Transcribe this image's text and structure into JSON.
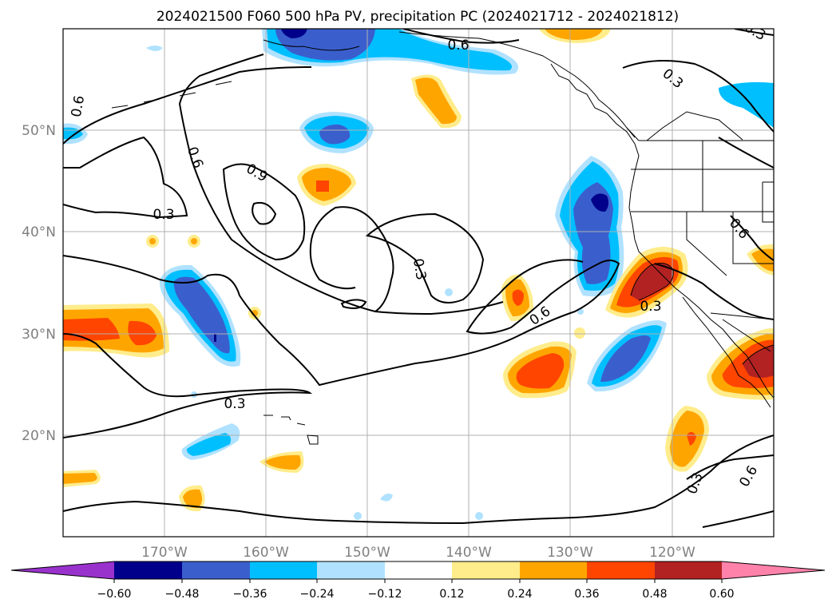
{
  "title": "2024021500 F060 500 hPa PV, precipitation PC (2024021712 - 2024021812)",
  "lat_labels": [
    "50°N",
    "40°N",
    "30°N",
    "20°N"
  ],
  "lon_labels": [
    "170°W",
    "160°W",
    "150°W",
    "140°W",
    "130°W",
    "120°W"
  ],
  "contour_labels": [
    "0.6",
    "0.3",
    "0.6",
    "0.3",
    "0.9",
    "0.3",
    "0.3",
    "0.6",
    "0.3",
    "0.6",
    "0.3",
    "0.6",
    "0.3",
    "0.6"
  ],
  "colorbar": {
    "tick_labels": [
      "−0.60",
      "−0.48",
      "−0.36",
      "−0.24",
      "−0.12",
      "0.12",
      "0.24",
      "0.36",
      "0.48",
      "0.60"
    ],
    "colors": [
      "#9932cc",
      "#00008b",
      "#3a5fcd",
      "#00bfff",
      "#b0e2ff",
      "#ffffff",
      "#ffec8b",
      "#ffa500",
      "#ff4500",
      "#b22222",
      "#ff82ab"
    ]
  },
  "colors": {
    "neg_extreme": "#00008b",
    "neg_strong": "#3a5fcd",
    "neg_mid": "#00bfff",
    "neg_weak": "#b0e2ff",
    "pos_weak": "#ffec8b",
    "pos_mid": "#ffa500",
    "pos_strong": "#ff4500",
    "pos_extreme": "#b22222"
  }
}
